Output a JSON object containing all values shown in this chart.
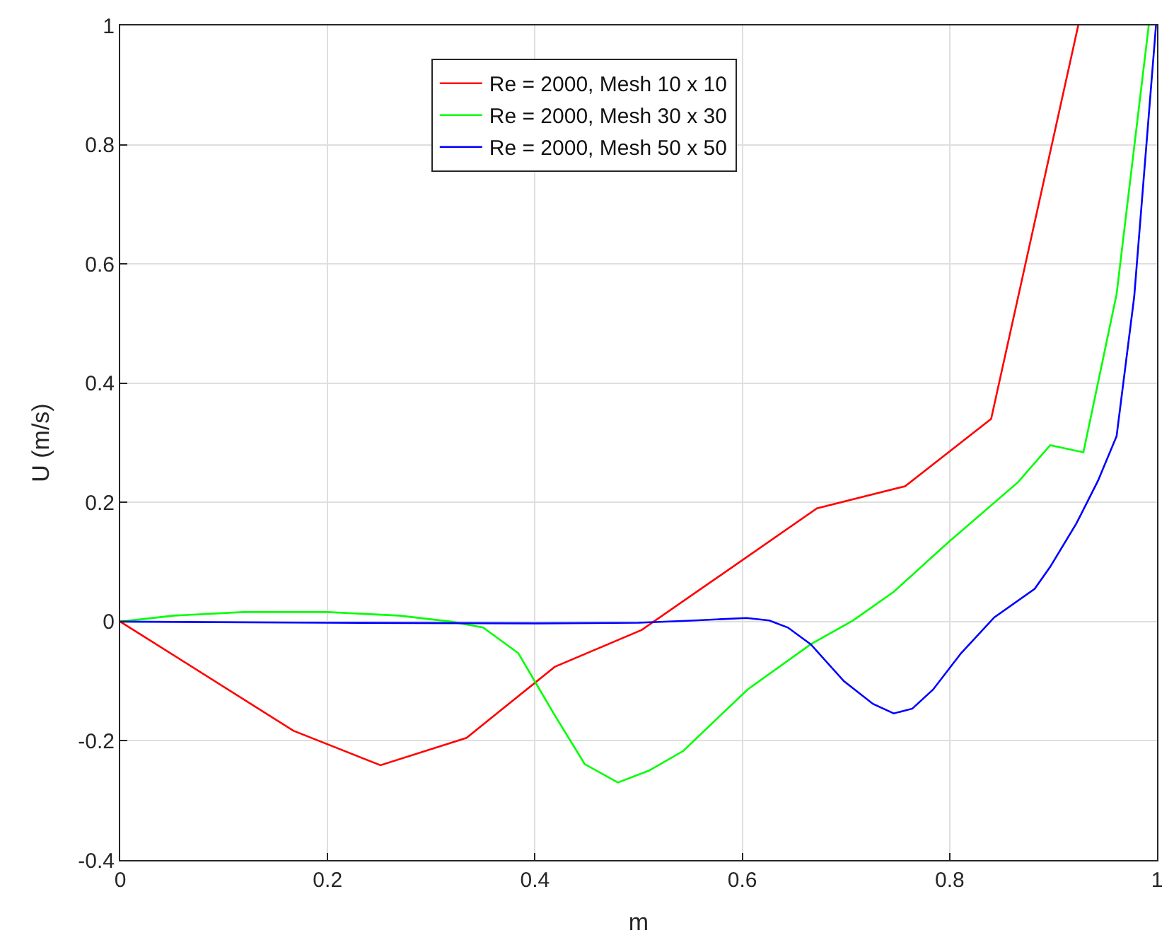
{
  "chart_data": {
    "type": "line",
    "xlabel": "m",
    "ylabel": "U (m/s)",
    "xlim": [
      0,
      1
    ],
    "ylim": [
      -0.4,
      1
    ],
    "xticks": [
      0,
      0.2,
      0.4,
      0.6,
      0.8,
      1
    ],
    "yticks": [
      -0.4,
      -0.2,
      0,
      0.2,
      0.4,
      0.6,
      0.8,
      1
    ],
    "grid": true,
    "legend": "top",
    "marker": "none",
    "line_style": "solid",
    "series": [
      {
        "name": "Re = 2000, Mesh 10 x 10",
        "color": "#ff0000",
        "x": [
          0,
          0.167,
          0.251,
          0.334,
          0.419,
          0.503,
          0.672,
          0.757,
          0.84,
          0.924
        ],
        "values": [
          0,
          -0.183,
          -0.241,
          -0.195,
          -0.076,
          -0.014,
          0.19,
          0.227,
          0.34,
          1.0
        ]
      },
      {
        "name": "Re = 2000, Mesh 30 x 30",
        "color": "#00ff00",
        "x": [
          0,
          0.052,
          0.119,
          0.2,
          0.269,
          0.319,
          0.35,
          0.384,
          0.418,
          0.448,
          0.48,
          0.51,
          0.543,
          0.605,
          0.666,
          0.707,
          0.746,
          0.8,
          0.866,
          0.897,
          0.929,
          0.961,
          0.992
        ],
        "values": [
          0,
          0.01,
          0.016,
          0.016,
          0.01,
          0,
          -0.01,
          -0.053,
          -0.154,
          -0.239,
          -0.27,
          -0.25,
          -0.217,
          -0.114,
          -0.038,
          0.002,
          0.05,
          0.135,
          0.234,
          0.296,
          0.284,
          0.549,
          1.0
        ]
      },
      {
        "name": "Re = 2000, Mesh 50 x 50",
        "color": "#0000ff",
        "x": [
          0,
          0.2,
          0.4,
          0.5,
          0.554,
          0.604,
          0.626,
          0.644,
          0.666,
          0.698,
          0.726,
          0.746,
          0.764,
          0.784,
          0.811,
          0.843,
          0.882,
          0.897,
          0.922,
          0.943,
          0.961,
          0.978,
          0.999
        ],
        "values": [
          0,
          -0.002,
          -0.003,
          -0.002,
          0.002,
          0.006,
          0.002,
          -0.01,
          -0.038,
          -0.1,
          -0.138,
          -0.154,
          -0.146,
          -0.114,
          -0.053,
          0.007,
          0.055,
          0.092,
          0.164,
          0.236,
          0.311,
          0.545,
          1.0
        ]
      }
    ]
  }
}
